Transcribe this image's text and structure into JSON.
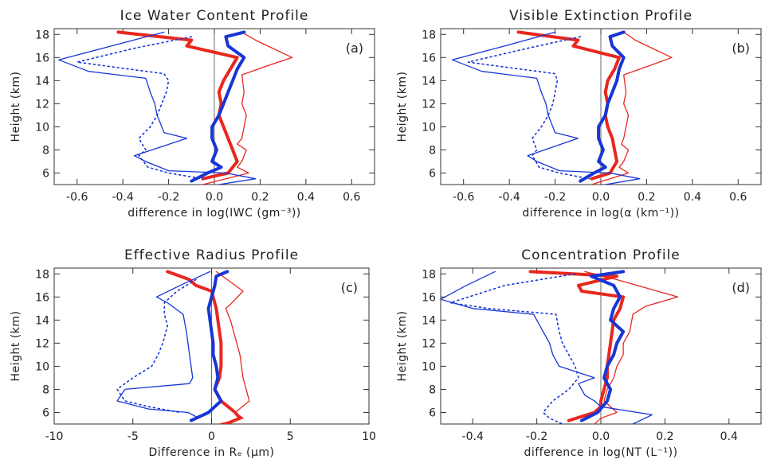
{
  "chart_data": [
    {
      "type": "line",
      "panel": "(a)",
      "title": "Ice Water Content Profile",
      "xlabel": "difference in log(IWC (gm⁻³))",
      "ylabel": "Height (km)",
      "xlim": [
        -0.7,
        0.7
      ],
      "ylim": [
        5,
        18.5
      ],
      "xticks": [
        "-0.6",
        "-0.4",
        "-0.2",
        "0.0",
        "0.2",
        "0.4",
        "0.6"
      ],
      "yticks": [
        "6",
        "8",
        "10",
        "12",
        "14",
        "16",
        "18"
      ],
      "reference_line_x": 0,
      "series": [
        {
          "color": "#e8271e",
          "style": "thick",
          "x": [
            -0.42,
            -0.1,
            -0.12,
            0.1,
            0.07,
            0.04,
            0.02,
            0.03,
            0.02,
            0.04,
            0.06,
            0.08,
            0.1,
            0.06,
            -0.05
          ],
          "y": [
            18.2,
            17.5,
            17,
            16,
            15,
            14,
            13,
            12,
            11,
            10,
            9,
            8,
            7,
            6,
            5.5
          ]
        },
        {
          "color": "#e8271e",
          "style": "thin",
          "x": [
            0.12,
            0.18,
            0.34,
            0.22,
            0.12,
            0.13,
            0.12,
            0.14,
            0.13,
            0.12,
            0.1,
            0.14,
            0.12,
            0.1,
            0.15,
            0.05,
            -0.05
          ],
          "y": [
            18.2,
            17.5,
            16,
            15.2,
            14.5,
            13,
            12,
            11,
            10,
            9,
            8.5,
            8,
            7,
            6.5,
            6,
            5.5,
            5
          ]
        },
        {
          "color": "#1736d6",
          "style": "thick",
          "x": [
            0.13,
            0.05,
            0.06,
            0.13,
            0.1,
            0.08,
            0.06,
            0.04,
            0.02,
            -0.01,
            -0.01,
            0.01,
            -0.01,
            0.03,
            -0.03,
            -0.1
          ],
          "y": [
            18.2,
            17.8,
            17,
            16,
            15,
            14,
            13,
            12,
            11,
            10,
            9,
            8,
            7,
            6.5,
            6,
            5.3
          ]
        },
        {
          "color": "#1736d6",
          "style": "thin",
          "x": [
            -0.22,
            -0.45,
            -0.68,
            -0.55,
            -0.3,
            -0.28,
            -0.26,
            -0.25,
            -0.23,
            -0.22,
            -0.12,
            -0.35,
            -0.3,
            -0.2,
            0.05,
            0.18,
            0.02
          ],
          "y": [
            18.2,
            17,
            15.8,
            14.8,
            14.2,
            13,
            12,
            11,
            10,
            9.5,
            9,
            7.5,
            7,
            6.2,
            6,
            5.5,
            5
          ]
        },
        {
          "color": "#1736d6",
          "style": "dotted",
          "x": [
            -0.1,
            -0.35,
            -0.6,
            -0.45,
            -0.22,
            -0.2,
            -0.21,
            -0.23,
            -0.25,
            -0.28,
            -0.33,
            -0.3,
            -0.33,
            -0.29,
            -0.2,
            -0.05
          ],
          "y": [
            17.8,
            16.8,
            15.6,
            15.2,
            14.6,
            14,
            13,
            12,
            11,
            10,
            9,
            8,
            7.5,
            6.5,
            6,
            5.5
          ]
        }
      ]
    },
    {
      "type": "line",
      "panel": "(b)",
      "title": "Visible Extinction Profile",
      "xlabel": "difference in log(α (km⁻¹))",
      "ylabel": "Height (km)",
      "xlim": [
        -0.7,
        0.7
      ],
      "ylim": [
        5,
        18.5
      ],
      "xticks": [
        "-0.6",
        "-0.4",
        "-0.2",
        "0.0",
        "0.2",
        "0.4",
        "0.6"
      ],
      "yticks": [
        "6",
        "8",
        "10",
        "12",
        "14",
        "16",
        "18"
      ],
      "reference_line_x": 0,
      "series": [
        {
          "color": "#e8271e",
          "style": "thick",
          "x": [
            -0.36,
            -0.1,
            -0.12,
            0.08,
            0.06,
            0.03,
            0.02,
            0.03,
            0.02,
            0.03,
            0.05,
            0.06,
            0.07,
            0.04,
            -0.04
          ],
          "y": [
            18.2,
            17.5,
            17,
            16,
            15,
            14,
            13,
            12,
            11,
            10,
            9,
            8,
            7,
            6,
            5.5
          ]
        },
        {
          "color": "#e8271e",
          "style": "thin",
          "x": [
            0.1,
            0.15,
            0.31,
            0.2,
            0.1,
            0.11,
            0.1,
            0.12,
            0.11,
            0.1,
            0.09,
            0.12,
            0.1,
            0.08,
            0.12,
            0.04,
            -0.04
          ],
          "y": [
            18.2,
            17.5,
            16,
            15.2,
            14.5,
            13,
            12,
            11,
            10,
            9,
            8.5,
            8,
            7,
            6.5,
            6,
            5.5,
            5
          ]
        },
        {
          "color": "#1736d6",
          "style": "thick",
          "x": [
            0.1,
            0.04,
            0.05,
            0.1,
            0.08,
            0.07,
            0.05,
            0.03,
            0.02,
            -0.01,
            -0.01,
            0.01,
            -0.01,
            0.02,
            -0.03,
            -0.09
          ],
          "y": [
            18.2,
            17.8,
            17,
            16,
            15,
            14,
            13,
            12,
            11,
            10,
            9,
            8,
            7,
            6.5,
            6,
            5.3
          ]
        },
        {
          "color": "#1736d6",
          "style": "thin",
          "x": [
            -0.2,
            -0.42,
            -0.65,
            -0.52,
            -0.28,
            -0.26,
            -0.24,
            -0.23,
            -0.21,
            -0.2,
            -0.1,
            -0.32,
            -0.28,
            -0.18,
            0.04,
            0.17,
            0.02
          ],
          "y": [
            18.2,
            17,
            15.8,
            14.8,
            14.2,
            13,
            12,
            11,
            10,
            9.5,
            9,
            7.5,
            7,
            6.2,
            6,
            5.5,
            5
          ]
        },
        {
          "color": "#1736d6",
          "style": "dotted",
          "x": [
            -0.09,
            -0.32,
            -0.58,
            -0.43,
            -0.2,
            -0.19,
            -0.2,
            -0.21,
            -0.23,
            -0.26,
            -0.3,
            -0.28,
            -0.3,
            -0.27,
            -0.18,
            -0.05
          ],
          "y": [
            17.8,
            16.8,
            15.6,
            15.2,
            14.6,
            14,
            13,
            12,
            11,
            10,
            9,
            8,
            7.5,
            6.5,
            6,
            5.5
          ]
        }
      ]
    },
    {
      "type": "line",
      "panel": "(c)",
      "title": "Effective Radius Profile",
      "xlabel": "Difference in Rₑ (μm)",
      "ylabel": "Height (km)",
      "xlim": [
        -10,
        10
      ],
      "ylim": [
        5,
        18.5
      ],
      "xticks": [
        "-10",
        "-5",
        "0",
        "5",
        "10"
      ],
      "yticks": [
        "6",
        "8",
        "10",
        "12",
        "14",
        "16",
        "18"
      ],
      "reference_line_x": 0,
      "series": [
        {
          "color": "#e8271e",
          "style": "thick",
          "x": [
            -2.8,
            -1.4,
            -1.0,
            0.0,
            0.3,
            0.4,
            0.5,
            0.6,
            0.6,
            0.6,
            0.5,
            0.2,
            0.6,
            1.5,
            1.8,
            0.9
          ],
          "y": [
            18.2,
            17.5,
            17,
            16.5,
            15,
            14,
            13,
            12,
            11,
            10,
            9,
            8,
            7,
            6,
            5.5,
            5
          ]
        },
        {
          "color": "#e8271e",
          "style": "thin",
          "x": [
            0.3,
            1.0,
            2.0,
            1.3,
            0.9,
            1.2,
            1.4,
            1.6,
            1.8,
            1.9,
            2.0,
            2.2,
            2.4,
            1.5,
            2.0,
            0.5
          ],
          "y": [
            18.2,
            17.5,
            16.5,
            15.5,
            15,
            14,
            13,
            12,
            11,
            10,
            9,
            8,
            7,
            6,
            5.5,
            5
          ]
        },
        {
          "color": "#1736d6",
          "style": "thick",
          "x": [
            1.0,
            0.3,
            0.2,
            0.0,
            -0.2,
            -0.1,
            0.0,
            0.1,
            0.1,
            0.3,
            0.4,
            0.2,
            0.6,
            -0.2,
            -1.3
          ],
          "y": [
            18.2,
            17.8,
            17,
            16,
            15,
            14,
            13,
            12,
            11,
            10,
            9,
            8,
            7,
            6,
            5.3
          ]
        },
        {
          "color": "#1736d6",
          "style": "thin",
          "x": [
            -0.1,
            -2.0,
            -3.5,
            -2.8,
            -1.8,
            -1.6,
            -1.5,
            -1.4,
            -1.3,
            -1.2,
            -1.4,
            -5.5,
            -6.0,
            -4.0,
            -1.5,
            -0.8
          ],
          "y": [
            18.2,
            17,
            16,
            15.5,
            14.5,
            13,
            12,
            11,
            10,
            9,
            8.5,
            8,
            7,
            6.3,
            6,
            5.5
          ]
        },
        {
          "color": "#1736d6",
          "style": "dotted",
          "x": [
            -1.0,
            -2.2,
            -3.0,
            -3.0,
            -2.8,
            -2.9,
            -3.1,
            -3.4,
            -3.8,
            -5.0,
            -6.0,
            -5.5,
            -4.0,
            -2.0
          ],
          "y": [
            17.5,
            16.5,
            15.5,
            14.5,
            13.5,
            13,
            12,
            11,
            10,
            9,
            8,
            7,
            6.5,
            6
          ]
        }
      ]
    },
    {
      "type": "line",
      "panel": "(d)",
      "title": "Concentration Profile",
      "xlabel": "difference in log(NT (L⁻¹))",
      "ylabel": "Height (km)",
      "xlim": [
        -0.5,
        0.5
      ],
      "ylim": [
        5,
        18.5
      ],
      "xticks": [
        "-0.4",
        "-0.2",
        "0.0",
        "0.2",
        "0.4"
      ],
      "yticks": [
        "6",
        "8",
        "10",
        "12",
        "14",
        "16",
        "18"
      ],
      "reference_line_x": 0,
      "series": [
        {
          "color": "#e8271e",
          "style": "thick",
          "x": [
            -0.22,
            0.05,
            -0.07,
            -0.06,
            0.07,
            0.06,
            0.04,
            0.03,
            0.02,
            0.02,
            0.01,
            0.0,
            0.0,
            -0.02,
            -0.1
          ],
          "y": [
            18.2,
            17.8,
            17,
            16.5,
            16,
            15,
            14,
            12,
            10,
            9,
            8,
            7,
            6.5,
            6,
            5.3
          ]
        },
        {
          "color": "#e8271e",
          "style": "thin",
          "x": [
            -0.05,
            0.05,
            0.24,
            0.14,
            0.1,
            0.09,
            0.07,
            0.07,
            0.05,
            0.04,
            0.02,
            0.01,
            0.05,
            0.0,
            -0.02
          ],
          "y": [
            18.2,
            17.5,
            16,
            15.2,
            14.5,
            13,
            12,
            11,
            10,
            9,
            8,
            7,
            6,
            5.5,
            5
          ]
        },
        {
          "color": "#1736d6",
          "style": "thick",
          "x": [
            0.07,
            -0.03,
            0.04,
            0.06,
            0.04,
            0.03,
            0.07,
            0.05,
            0.04,
            0.02,
            0.01,
            0.03,
            0.02,
            -0.01,
            -0.06
          ],
          "y": [
            18.2,
            17.8,
            17,
            16,
            15,
            14,
            13,
            12,
            11,
            10,
            9,
            8,
            7,
            6,
            5.3
          ]
        },
        {
          "color": "#1736d6",
          "style": "thin",
          "x": [
            -0.33,
            -0.42,
            -0.5,
            -0.4,
            -0.21,
            -0.18,
            -0.16,
            -0.15,
            -0.13,
            -0.02,
            -0.07,
            -0.05,
            -0.02,
            0.0,
            0.16,
            0.1
          ],
          "y": [
            18.2,
            17,
            15.8,
            15,
            14.5,
            13,
            12,
            11,
            10,
            9,
            8.5,
            7.5,
            7,
            6.5,
            5.8,
            5
          ]
        },
        {
          "color": "#1736d6",
          "style": "dotted",
          "x": [
            -0.08,
            -0.3,
            -0.47,
            -0.35,
            -0.14,
            -0.13,
            -0.12,
            -0.1,
            -0.08,
            -0.07,
            -0.1,
            -0.15,
            -0.18,
            -0.16,
            -0.12
          ],
          "y": [
            18.0,
            17,
            15.5,
            15,
            14.5,
            13,
            12,
            11,
            10,
            9,
            8,
            7,
            6,
            5.5,
            5
          ]
        }
      ]
    }
  ]
}
